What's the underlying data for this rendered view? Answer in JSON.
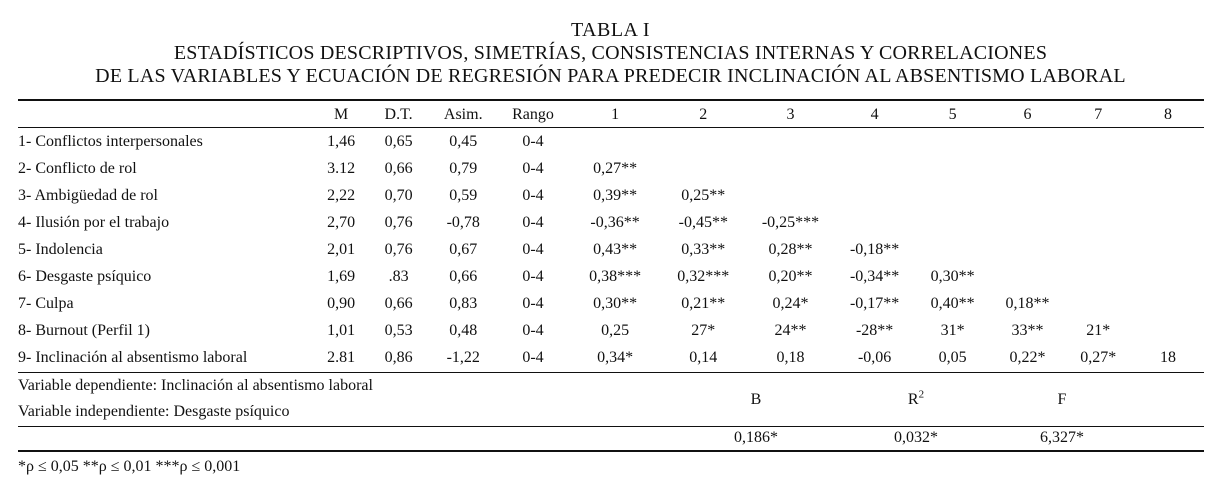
{
  "title": {
    "line1": "TABLA I",
    "line2": "ESTADÍSTICOS DESCRIPTIVOS, SIMETRÍAS, CONSISTENCIAS INTERNAS Y CORRELACIONES",
    "line3": "DE LAS VARIABLES Y ECUACIÓN DE REGRESIÓN PARA PREDECIR INCLINACIÓN AL ABSENTISMO LABORAL"
  },
  "columns": [
    "",
    "M",
    "D.T.",
    "Asim.",
    "Rango",
    "1",
    "2",
    "3",
    "4",
    "5",
    "6",
    "7",
    "8"
  ],
  "rows": [
    [
      "1- Conflictos interpersonales",
      "1,46",
      "0,65",
      "0,45",
      "0-4",
      "",
      "",
      "",
      "",
      "",
      "",
      "",
      ""
    ],
    [
      "2- Conflicto de rol",
      "3.12",
      "0,66",
      "0,79",
      "0-4",
      "0,27**",
      "",
      "",
      "",
      "",
      "",
      "",
      ""
    ],
    [
      "3- Ambigüedad de rol",
      "2,22",
      "0,70",
      "0,59",
      "0-4",
      "0,39**",
      "0,25**",
      "",
      "",
      "",
      "",
      "",
      ""
    ],
    [
      "4- Ilusión por el trabajo",
      "2,70",
      "0,76",
      "-0,78",
      "0-4",
      "-0,36**",
      "-0,45**",
      "-0,25***",
      "",
      "",
      "",
      "",
      ""
    ],
    [
      "5- Indolencia",
      "2,01",
      "0,76",
      "0,67",
      "0-4",
      "0,43**",
      "0,33**",
      "0,28**",
      "-0,18**",
      "",
      "",
      "",
      ""
    ],
    [
      "6- Desgaste psíquico",
      "1,69",
      ".83",
      "0,66",
      "0-4",
      "0,38***",
      "0,32***",
      "0,20**",
      "-0,34**",
      "0,30**",
      "",
      "",
      ""
    ],
    [
      "7- Culpa",
      "0,90",
      "0,66",
      "0,83",
      "0-4",
      "0,30**",
      "0,21**",
      "0,24*",
      "-0,17**",
      "0,40**",
      "0,18**",
      "",
      ""
    ],
    [
      "8- Burnout (Perfil 1)",
      "1,01",
      "0,53",
      "0,48",
      "0-4",
      "0,25",
      "27*",
      "24**",
      "-28**",
      "31*",
      "33**",
      "21*",
      ""
    ],
    [
      "9- Inclinación al absentismo laboral",
      "2.81",
      "0,86",
      "-1,22",
      "0-4",
      "0,34*",
      "0,14",
      "0,18",
      "-0,06",
      "0,05",
      "0,22*",
      "0,27*",
      "18"
    ]
  ],
  "regression": {
    "dependent": "Variable dependiente: Inclinación al absentismo laboral",
    "independent": "Variable independiente: Desgaste psíquico",
    "head_b": "B",
    "head_r": "R",
    "head_r_sup": "2",
    "head_f": "F",
    "val_b": "0,186*",
    "val_r": "0,032*",
    "val_f": "6,327*"
  },
  "footnote": "*ρ ≤ 0,05 **ρ ≤ 0,01 ***ρ ≤ 0,001"
}
